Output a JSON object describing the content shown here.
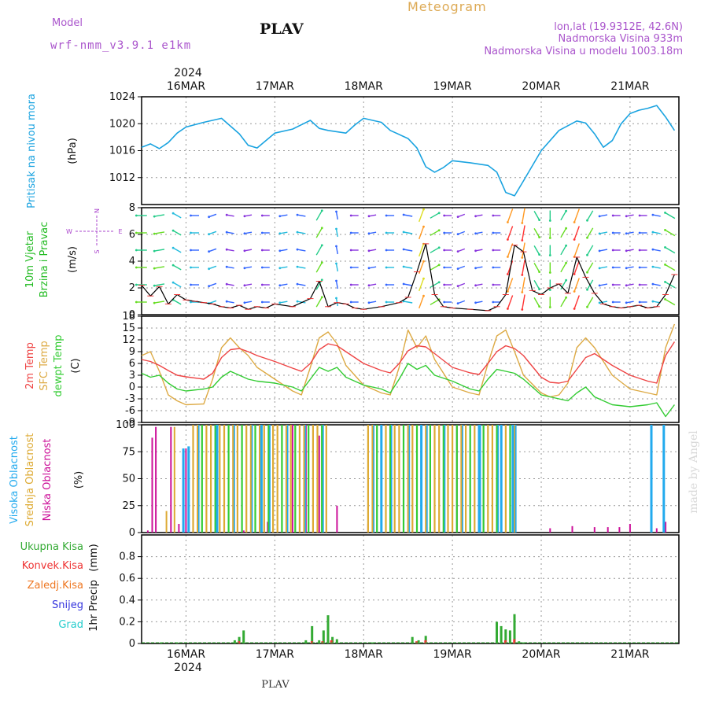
{
  "header": {
    "model_label": "Model",
    "model_name": "wrf-nmm_v3.9.1  e1km",
    "station": "PLAV",
    "meteogram": "Meteogram",
    "lonlat": "lon,lat (19.9312E, 42.6N)",
    "elevation": "Nadmorska Visina 933m",
    "model_elevation": "Nadmorska Visina u modelu 1003.18m",
    "footer_station": "PLAV",
    "watermark": "made by Angel"
  },
  "colors": {
    "pressure": "#1aa3e0",
    "wind_label": "#22bb22",
    "wind_compass": "#aa44cc",
    "temp2m": "#ee4444",
    "sfc_temp": "#ddaa44",
    "dewpoint": "#33cc33",
    "high_cloud": "#22aaee",
    "mid_cloud": "#ddaa33",
    "low_cloud": "#cc1199",
    "total_precip": "#33aa33",
    "conv_precip": "#ee3333",
    "frozen_precip": "#ee7722",
    "snow": "#3333dd",
    "hail": "#22cccc",
    "header_purple": "#aa55cc",
    "header_gold": "#ddaa55"
  },
  "axis": {
    "year_label": "2024",
    "day_labels": [
      "16MAR",
      "17MAR",
      "18MAR",
      "19MAR",
      "20MAR",
      "21MAR"
    ],
    "day_positions": [
      1,
      2,
      3,
      4,
      5,
      6
    ]
  },
  "chart_data": [
    {
      "type": "line",
      "panel": "pressure",
      "ylabel_main": "Pritisak na nivou mora",
      "ylabel_unit": "(hPa)",
      "ylim": [
        1008,
        1024
      ],
      "yticks": [
        1012,
        1016,
        1020,
        1024
      ],
      "x": [
        0.5,
        0.6,
        0.7,
        0.8,
        0.9,
        1.0,
        1.2,
        1.4,
        1.6,
        1.7,
        1.8,
        2.0,
        2.2,
        2.4,
        2.5,
        2.6,
        2.8,
        2.9,
        3.0,
        3.2,
        3.3,
        3.5,
        3.6,
        3.7,
        3.8,
        3.9,
        4.0,
        4.2,
        4.4,
        4.5,
        4.6,
        4.7,
        4.8,
        5.0,
        5.2,
        5.4,
        5.5,
        5.6,
        5.7,
        5.8,
        5.9,
        6.0,
        6.1,
        6.2,
        6.3,
        6.4,
        6.5
      ],
      "series": [
        {
          "values": [
            1016.5,
            1017.0,
            1016.3,
            1017.2,
            1018.6,
            1019.5,
            1020.2,
            1020.8,
            1018.5,
            1016.8,
            1016.4,
            1018.6,
            1019.2,
            1020.5,
            1019.3,
            1019.0,
            1018.6,
            1019.8,
            1020.8,
            1020.2,
            1019.0,
            1017.8,
            1016.4,
            1013.6,
            1012.8,
            1013.5,
            1014.5,
            1014.2,
            1013.8,
            1012.8,
            1009.8,
            1009.3,
            1011.5,
            1016.0,
            1019.0,
            1020.4,
            1020.1,
            1018.5,
            1016.5,
            1017.5,
            1020.0,
            1021.5,
            1022.0,
            1022.3,
            1022.7,
            1021.0,
            1019.0
          ]
        }
      ]
    },
    {
      "type": "line",
      "panel": "wind",
      "ylabel_main": "10m Vjetar",
      "ylabel_sub": "Brzina i Pravac",
      "ylabel_unit": "(m/s)",
      "compass_n": "N",
      "compass_s": "S",
      "compass_w": "W",
      "compass_e": "E",
      "ylim": [
        0,
        8
      ],
      "yticks": [
        0,
        2,
        4,
        6,
        8
      ],
      "x": [
        0.5,
        0.6,
        0.7,
        0.8,
        0.9,
        1.0,
        1.1,
        1.2,
        1.3,
        1.4,
        1.5,
        1.6,
        1.7,
        1.8,
        1.9,
        2.0,
        2.2,
        2.4,
        2.5,
        2.6,
        2.7,
        2.8,
        2.9,
        3.0,
        3.2,
        3.4,
        3.5,
        3.6,
        3.7,
        3.8,
        3.9,
        4.0,
        4.2,
        4.4,
        4.5,
        4.6,
        4.7,
        4.8,
        4.9,
        5.0,
        5.1,
        5.2,
        5.3,
        5.4,
        5.5,
        5.6,
        5.7,
        5.8,
        5.9,
        6.0,
        6.1,
        6.2,
        6.3,
        6.4,
        6.5
      ],
      "series": [
        {
          "values": [
            2.2,
            1.4,
            2.1,
            0.8,
            1.5,
            1.1,
            1.0,
            0.9,
            0.8,
            0.6,
            0.5,
            0.7,
            0.4,
            0.6,
            0.5,
            0.8,
            0.6,
            1.2,
            2.5,
            0.6,
            0.9,
            0.8,
            0.5,
            0.4,
            0.6,
            0.9,
            1.3,
            3.2,
            5.3,
            1.5,
            0.6,
            0.5,
            0.4,
            0.3,
            0.6,
            1.5,
            5.2,
            4.7,
            1.8,
            1.5,
            2.0,
            2.3,
            1.6,
            4.3,
            2.8,
            1.6,
            0.8,
            0.6,
            0.5,
            0.6,
            0.7,
            0.5,
            0.6,
            1.5,
            3.0
          ]
        }
      ],
      "arrows": [
        {
          "x": 0.5,
          "dir": 270,
          "speed": 2.2
        },
        {
          "x": 0.7,
          "dir": 260,
          "speed": 2.0
        },
        {
          "x": 0.9,
          "dir": 300,
          "speed": 1.5
        },
        {
          "x": 1.1,
          "dir": 270,
          "speed": 1.0
        },
        {
          "x": 1.3,
          "dir": 250,
          "speed": 0.8
        },
        {
          "x": 1.5,
          "dir": 280,
          "speed": 0.6
        },
        {
          "x": 1.7,
          "dir": 260,
          "speed": 0.5
        },
        {
          "x": 1.9,
          "dir": 270,
          "speed": 0.6
        },
        {
          "x": 2.1,
          "dir": 260,
          "speed": 0.7
        },
        {
          "x": 2.3,
          "dir": 280,
          "speed": 1.0
        },
        {
          "x": 2.5,
          "dir": 30,
          "speed": 2.5
        },
        {
          "x": 2.7,
          "dir": 350,
          "speed": 0.9
        },
        {
          "x": 2.9,
          "dir": 270,
          "speed": 0.6
        },
        {
          "x": 3.1,
          "dir": 260,
          "speed": 0.5
        },
        {
          "x": 3.3,
          "dir": 270,
          "speed": 0.8
        },
        {
          "x": 3.5,
          "dir": 280,
          "speed": 1.3
        },
        {
          "x": 3.65,
          "dir": 20,
          "speed": 3.5
        },
        {
          "x": 3.8,
          "dir": 60,
          "speed": 2.0
        },
        {
          "x": 3.95,
          "dir": 270,
          "speed": 0.6
        },
        {
          "x": 4.1,
          "dir": 250,
          "speed": 0.5
        },
        {
          "x": 4.3,
          "dir": 260,
          "speed": 0.4
        },
        {
          "x": 4.5,
          "dir": 270,
          "speed": 0.6
        },
        {
          "x": 4.65,
          "dir": 200,
          "speed": 4.0
        },
        {
          "x": 4.8,
          "dir": 190,
          "speed": 4.5
        },
        {
          "x": 4.95,
          "dir": 150,
          "speed": 2.0
        },
        {
          "x": 5.1,
          "dir": 180,
          "speed": 2.0
        },
        {
          "x": 5.25,
          "dir": 30,
          "speed": 2.2
        },
        {
          "x": 5.4,
          "dir": 200,
          "speed": 4.0
        },
        {
          "x": 5.55,
          "dir": 210,
          "speed": 2.5
        },
        {
          "x": 5.7,
          "dir": 260,
          "speed": 0.8
        },
        {
          "x": 5.85,
          "dir": 270,
          "speed": 0.6
        },
        {
          "x": 6.0,
          "dir": 260,
          "speed": 0.6
        },
        {
          "x": 6.15,
          "dir": 270,
          "speed": 0.6
        },
        {
          "x": 6.3,
          "dir": 280,
          "speed": 0.8
        },
        {
          "x": 6.45,
          "dir": 300,
          "speed": 2.5
        }
      ]
    },
    {
      "type": "line",
      "panel": "temperature",
      "ylabel_t2m": "2m Temp",
      "ylabel_sfc": "SFC Temp",
      "ylabel_dew": "dewpt Temp",
      "ylabel_unit": "(C)",
      "ylim": [
        -9,
        18
      ],
      "yticks": [
        -9,
        -6,
        -3,
        0,
        3,
        6,
        9,
        12,
        15,
        18
      ],
      "x": [
        0.5,
        0.6,
        0.7,
        0.8,
        0.9,
        1.0,
        1.2,
        1.3,
        1.4,
        1.5,
        1.6,
        1.7,
        1.8,
        2.0,
        2.2,
        2.3,
        2.4,
        2.5,
        2.6,
        2.7,
        2.8,
        3.0,
        3.2,
        3.3,
        3.4,
        3.5,
        3.6,
        3.7,
        3.8,
        4.0,
        4.2,
        4.3,
        4.4,
        4.5,
        4.6,
        4.7,
        4.8,
        5.0,
        5.1,
        5.2,
        5.3,
        5.4,
        5.5,
        5.6,
        5.8,
        6.0,
        6.2,
        6.3,
        6.4,
        6.5
      ],
      "series": [
        {
          "name": "2m Temp",
          "values": [
            7.0,
            6.5,
            5.5,
            4.2,
            3.0,
            2.6,
            2.0,
            3.5,
            7.5,
            9.5,
            9.8,
            9.0,
            8.0,
            6.5,
            4.8,
            4.0,
            6.0,
            9.5,
            11.0,
            10.5,
            9.0,
            6.0,
            4.2,
            3.6,
            6.0,
            9.2,
            10.5,
            10.2,
            8.5,
            5.0,
            3.6,
            3.2,
            6.0,
            9.0,
            10.5,
            9.8,
            8.0,
            2.5,
            1.2,
            1.0,
            1.5,
            4.5,
            7.5,
            8.5,
            5.5,
            3.0,
            1.5,
            1.0,
            8.0,
            11.5
          ]
        },
        {
          "name": "SFC Temp",
          "values": [
            8.0,
            9.0,
            4.0,
            -2.0,
            -3.5,
            -4.5,
            -4.3,
            2.0,
            10.0,
            12.5,
            10.0,
            8.0,
            5.0,
            2.0,
            -1.0,
            -2.0,
            5.0,
            12.5,
            14.0,
            11.0,
            5.5,
            0.5,
            -1.5,
            -2.0,
            5.0,
            14.5,
            10.0,
            13.0,
            7.0,
            0.0,
            -1.5,
            -2.0,
            6.0,
            13.0,
            14.5,
            9.0,
            3.0,
            -1.5,
            -2.5,
            -2.0,
            1.0,
            10.0,
            12.5,
            10.0,
            3.0,
            -0.5,
            -1.5,
            -2.0,
            10.0,
            16.0
          ]
        },
        {
          "name": "dewpt Temp",
          "values": [
            3.5,
            2.5,
            3.0,
            1.0,
            -0.5,
            -1.0,
            -0.5,
            0.0,
            2.5,
            4.0,
            3.0,
            2.0,
            1.5,
            1.0,
            0.0,
            -1.0,
            2.0,
            5.0,
            4.0,
            5.0,
            2.5,
            0.5,
            -0.5,
            -1.5,
            2.0,
            6.0,
            4.5,
            5.5,
            3.0,
            1.5,
            -0.5,
            -1.0,
            2.0,
            4.5,
            4.0,
            3.5,
            2.0,
            -2.0,
            -2.5,
            -3.0,
            -3.5,
            -1.5,
            0.0,
            -2.5,
            -4.5,
            -5.0,
            -4.5,
            -4.0,
            -7.5,
            -4.5
          ]
        }
      ]
    },
    {
      "type": "bar",
      "panel": "clouds",
      "ylabel_high": "Visoka Oblacnost",
      "ylabel_mid": "Srednja Oblacnost",
      "ylabel_low": "Niska Oblacnost",
      "ylabel_unit": "(%)",
      "ylim": [
        0,
        100
      ],
      "yticks": [
        0,
        25,
        50,
        75,
        100
      ],
      "bar_groups": [
        {
          "series": "low",
          "x": [
            0.57,
            0.62,
            0.66,
            0.83,
            0.92,
            1.0,
            1.65,
            1.92,
            2.2,
            2.35,
            2.5,
            2.7,
            3.05,
            3.1,
            3.75,
            4.05,
            4.35,
            4.5,
            4.65,
            5.1,
            5.35,
            5.6,
            5.75,
            5.88,
            6.0,
            6.3,
            6.4
          ],
          "values": [
            2,
            88,
            98,
            98,
            8,
            78,
            2,
            10,
            100,
            100,
            90,
            25,
            8,
            8,
            5,
            100,
            100,
            50,
            25,
            4,
            6,
            5,
            5,
            5,
            8,
            4,
            10
          ]
        },
        {
          "series": "mid",
          "x": [
            0.78,
            0.87
          ],
          "values": [
            20,
            98
          ]
        },
        {
          "series": "mid_block",
          "x_start": 1.08,
          "x_end": 2.62,
          "step": 0.05,
          "value": 100
        },
        {
          "series": "mid_block",
          "x_start": 3.05,
          "x_end": 4.72,
          "step": 0.05,
          "value": 100
        },
        {
          "series": "high",
          "x": [
            0.97,
            1.03,
            1.35,
            1.85,
            3.2,
            3.65,
            4.3,
            4.55,
            4.68
          ],
          "values": [
            78,
            80,
            100,
            100,
            100,
            100,
            100,
            100,
            100
          ]
        },
        {
          "series": "high",
          "x": [
            6.24,
            6.38
          ],
          "values": [
            100,
            100
          ]
        }
      ]
    },
    {
      "type": "bar",
      "panel": "precip",
      "ylabel_main": "1hr Precip",
      "ylabel_unit": "(mm)",
      "legend": [
        "Ukupna  Kisa",
        "Konvek.Kisa",
        "Zaledj.Kisa",
        "Snijeg",
        "Grad"
      ],
      "ylim": [
        0,
        1.0
      ],
      "yticks": [
        0,
        0.2,
        0.4,
        0.6,
        0.8
      ],
      "series": [
        {
          "name": "Ukupna Kisa",
          "x": [
            0.72,
            0.9,
            1.55,
            1.6,
            1.65,
            2.35,
            2.42,
            2.5,
            2.55,
            2.6,
            2.65,
            2.7,
            3.1,
            3.55,
            3.62,
            3.7,
            4.5,
            4.55,
            4.6,
            4.65,
            4.7,
            4.75,
            4.8
          ],
          "values": [
            0.01,
            0.01,
            0.03,
            0.06,
            0.12,
            0.03,
            0.16,
            0.03,
            0.12,
            0.26,
            0.06,
            0.04,
            0.01,
            0.06,
            0.03,
            0.07,
            0.2,
            0.16,
            0.13,
            0.12,
            0.27,
            0.02,
            0.01
          ]
        },
        {
          "name": "Konvek.Kisa",
          "x": [
            1.58,
            2.4,
            2.52,
            2.62,
            3.58,
            3.68,
            4.58,
            4.68
          ],
          "values": [
            0.02,
            0.02,
            0.02,
            0.03,
            0.02,
            0.03,
            0.03,
            0.04
          ]
        }
      ]
    }
  ]
}
